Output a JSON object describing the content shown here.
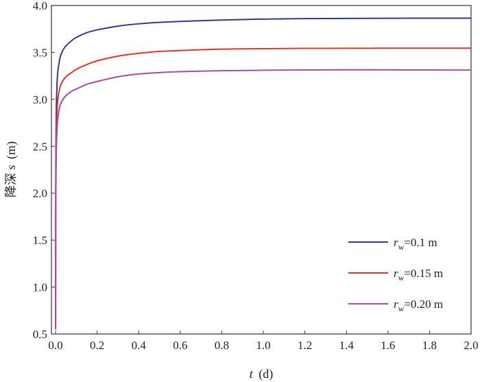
{
  "chart_data": {
    "type": "line",
    "title": "",
    "xlabel": {
      "var": "t",
      "unit": "(d)"
    },
    "ylabel": {
      "prefix": "降深",
      "var": "s",
      "unit": "(m)"
    },
    "xlim": [
      -0.02,
      2.0
    ],
    "ylim": [
      0.5,
      4.0
    ],
    "xticks": [
      0.0,
      0.2,
      0.4,
      0.6,
      0.8,
      1.0,
      1.2,
      1.4,
      1.6,
      1.8,
      2.0
    ],
    "xtick_labels": [
      "0.0",
      "0.2",
      "0.4",
      "0.6",
      "0.8",
      "1.0",
      "1.2",
      "1.4",
      "1.6",
      "1.8",
      "2.0"
    ],
    "yticks": [
      0.5,
      1.0,
      1.5,
      2.0,
      2.5,
      3.0,
      3.5,
      4.0
    ],
    "ytick_labels": [
      "0.5",
      "1.0",
      "1.5",
      "2.0",
      "2.5",
      "3.0",
      "3.5",
      "4.0"
    ],
    "grid": false,
    "legend_position": "bottom-right",
    "series": [
      {
        "name_var": "r",
        "name_sub": "w",
        "name_value": "=0.1 m",
        "color": "#2e3a8c",
        "x": [
          0.0,
          0.0005,
          0.001,
          0.002,
          0.004,
          0.006,
          0.01,
          0.02,
          0.03,
          0.05,
          0.08,
          0.1,
          0.15,
          0.2,
          0.3,
          0.4,
          0.5,
          0.6,
          0.8,
          1.0,
          1.2,
          1.4,
          1.6,
          1.8,
          2.0
        ],
        "y": [
          0.55,
          1.8,
          2.2,
          2.6,
          2.95,
          3.1,
          3.28,
          3.43,
          3.5,
          3.57,
          3.63,
          3.66,
          3.71,
          3.74,
          3.78,
          3.805,
          3.82,
          3.83,
          3.845,
          3.855,
          3.86,
          3.862,
          3.864,
          3.865,
          3.865
        ]
      },
      {
        "name_var": "r",
        "name_sub": "w",
        "name_value": "=0.15 m",
        "color": "#e03426",
        "x": [
          0.0,
          0.0005,
          0.001,
          0.002,
          0.004,
          0.006,
          0.01,
          0.02,
          0.03,
          0.05,
          0.08,
          0.1,
          0.15,
          0.2,
          0.3,
          0.4,
          0.5,
          0.6,
          0.8,
          1.0,
          1.2,
          1.4,
          1.6,
          1.8,
          2.0
        ],
        "y": [
          0.55,
          1.6,
          2.0,
          2.35,
          2.65,
          2.8,
          2.98,
          3.12,
          3.18,
          3.24,
          3.29,
          3.32,
          3.37,
          3.41,
          3.46,
          3.49,
          3.51,
          3.52,
          3.535,
          3.54,
          3.543,
          3.544,
          3.545,
          3.545,
          3.545
        ]
      },
      {
        "name_var": "r",
        "name_sub": "w",
        "name_value": "=0.20 m",
        "color": "#a64ca6",
        "x": [
          0.0,
          0.0005,
          0.001,
          0.002,
          0.004,
          0.006,
          0.01,
          0.02,
          0.03,
          0.05,
          0.08,
          0.1,
          0.15,
          0.2,
          0.3,
          0.4,
          0.5,
          0.6,
          0.8,
          1.0,
          1.2,
          1.4,
          1.6,
          1.8,
          2.0
        ],
        "y": [
          0.55,
          1.45,
          1.85,
          2.2,
          2.5,
          2.63,
          2.78,
          2.92,
          2.98,
          3.04,
          3.09,
          3.11,
          3.16,
          3.19,
          3.24,
          3.27,
          3.285,
          3.295,
          3.305,
          3.31,
          3.313,
          3.315,
          3.314,
          3.313,
          3.312
        ]
      }
    ]
  }
}
